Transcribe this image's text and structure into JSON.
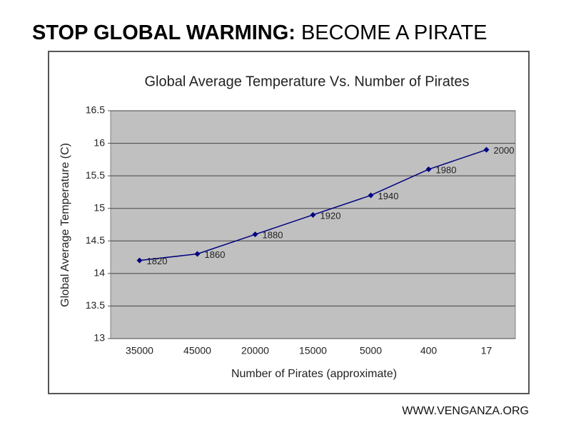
{
  "headline": {
    "bold": "STOP GLOBAL WARMING:",
    "regular": "BECOME A PIRATE"
  },
  "footer": "WWW.VENGANZA.ORG",
  "chart_data": {
    "type": "line",
    "title": "Global Average Temperature Vs. Number of Pirates",
    "x_label": "Number of Pirates (approximate)",
    "y_label": "Global Average Temperature (C)",
    "categories": [
      "35000",
      "45000",
      "20000",
      "15000",
      "5000",
      "400",
      "17"
    ],
    "series": [
      {
        "name": "Temperature",
        "color": "#000080",
        "values": [
          14.2,
          14.3,
          14.6,
          14.9,
          15.2,
          15.6,
          15.9
        ],
        "point_labels": [
          "1820",
          "1860",
          "1880",
          "1920",
          "1940",
          "1980",
          "2000"
        ]
      }
    ],
    "ylim": [
      13,
      16.5
    ],
    "yticks": [
      13,
      13.5,
      14,
      14.5,
      15,
      15.5,
      16,
      16.5
    ],
    "grid": true
  }
}
